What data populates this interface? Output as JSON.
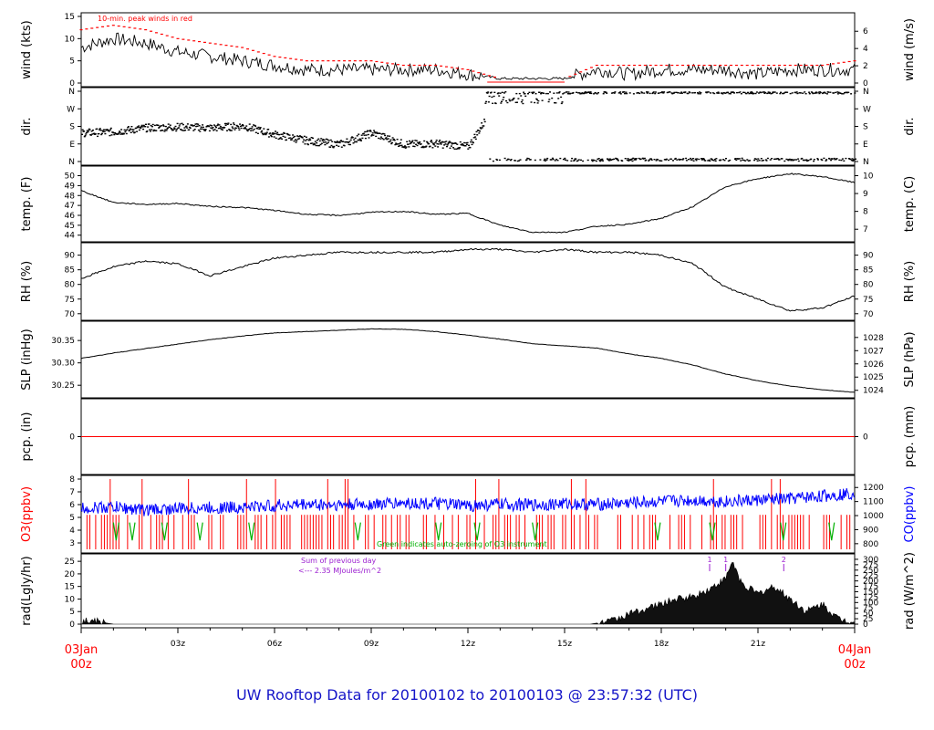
{
  "title": "UW Rooftop Data for 20100102  to  20100103 @ 23:57:32  (UTC)",
  "time_axis": {
    "start_label": [
      "03Jan",
      "00z"
    ],
    "end_label": [
      "04Jan",
      "00z"
    ],
    "ticks": [
      "03z",
      "06z",
      "09z",
      "12z",
      "15z",
      "18z",
      "21z"
    ]
  },
  "annotations": {
    "peak_winds": "10-min. peak winds in red",
    "sum_line1": "Sum of previous day",
    "sum_line2": "<--- 2.35 MJoules/m^2",
    "green_note": "Green indicates auto-zeroing of O3 instrument",
    "rad_marks": [
      "1",
      "1",
      "2"
    ]
  },
  "colors": {
    "axis": "#000000",
    "peak": "#ff0000",
    "co": "#0000ff",
    "green": "#00b000",
    "o3_label": "#ff0000",
    "co_label": "#0000ff",
    "title": "#1515c8",
    "time_label": "#ff0000"
  },
  "chart_data": [
    {
      "panel": "wind",
      "type": "line",
      "ylabel_left": "wind (kts)",
      "ylabel_right": "wind (m/s)",
      "yticks_left": [
        "0",
        "5",
        "10",
        "15"
      ],
      "yticks_right": [
        "0",
        "2",
        "4",
        "6"
      ],
      "ylim": [
        0,
        15
      ],
      "x": [
        0,
        1,
        2,
        3,
        4,
        5,
        6,
        7,
        8,
        9,
        10,
        11,
        12,
        13,
        14,
        15,
        16,
        17,
        18,
        19,
        20,
        21,
        22,
        23,
        24
      ],
      "y": [
        8,
        10,
        9,
        7,
        6,
        5,
        4,
        3,
        3,
        3,
        3,
        3,
        2,
        1,
        1,
        1,
        3,
        2,
        3,
        3,
        3,
        2,
        3,
        3,
        3
      ],
      "peak": [
        12,
        13,
        12,
        10,
        9,
        8,
        6,
        5,
        5,
        5,
        4,
        4,
        3,
        1,
        1,
        1,
        4,
        4,
        4,
        4,
        4,
        4,
        4,
        4,
        5
      ]
    },
    {
      "panel": "dir",
      "type": "scatter",
      "ylabel_left": "dir.",
      "ylabel_right": "dir.",
      "yticks_left": [
        "N",
        "E",
        "S",
        "W",
        "N"
      ],
      "yticks_right": [
        "N",
        "E",
        "S",
        "W",
        "N"
      ],
      "ylim": [
        0,
        360
      ],
      "x": [
        0,
        1,
        2,
        3,
        4,
        5,
        6,
        7,
        8,
        9,
        10,
        11,
        12,
        13,
        14,
        15,
        16,
        17,
        18,
        19,
        20,
        21,
        22,
        23,
        24
      ],
      "y": [
        150,
        155,
        175,
        180,
        175,
        185,
        140,
        110,
        90,
        150,
        90,
        95,
        80,
        340,
        340,
        20,
        5,
        10,
        355,
        350,
        20,
        60,
        80,
        355,
        350
      ]
    },
    {
      "panel": "temp",
      "type": "line",
      "ylabel_left": "temp. (F)",
      "ylabel_right": "temp. (C)",
      "yticks_left": [
        "44",
        "45",
        "46",
        "47",
        "48",
        "49",
        "50"
      ],
      "yticks_right": [
        "7",
        "8",
        "9",
        "10"
      ],
      "ylim": [
        43.7,
        50.6
      ],
      "x": [
        0,
        1,
        2,
        3,
        4,
        5,
        6,
        7,
        8,
        9,
        10,
        11,
        12,
        13,
        14,
        15,
        16,
        17,
        18,
        19,
        20,
        21,
        22,
        23,
        24
      ],
      "y": [
        48.5,
        47.3,
        47.1,
        47.2,
        46.9,
        46.8,
        46.5,
        46.1,
        46.0,
        46.3,
        46.4,
        46.1,
        46.2,
        45.0,
        44.3,
        44.3,
        44.9,
        45.1,
        45.7,
        46.9,
        48.9,
        49.7,
        50.2,
        49.9,
        49.3
      ]
    },
    {
      "panel": "rh",
      "type": "line",
      "ylabel_left": "RH (%)",
      "ylabel_right": "RH (%)",
      "yticks_left": [
        "70",
        "75",
        "80",
        "85",
        "90"
      ],
      "yticks_right": [
        "70",
        "75",
        "80",
        "85",
        "90"
      ],
      "ylim": [
        69,
        93
      ],
      "x": [
        0,
        1,
        2,
        3,
        4,
        5,
        6,
        7,
        8,
        9,
        10,
        11,
        12,
        13,
        14,
        15,
        16,
        17,
        18,
        19,
        20,
        21,
        22,
        23,
        24
      ],
      "y": [
        82,
        86,
        88,
        87,
        83,
        86,
        89,
        90,
        91,
        91,
        91,
        91,
        92,
        92,
        91,
        92,
        91,
        91,
        90,
        87,
        79,
        75,
        71,
        72,
        76
      ]
    },
    {
      "panel": "slp",
      "type": "line",
      "ylabel_left": "SLP (inHg)",
      "ylabel_right": "SLP (hPa)",
      "yticks_left": [
        "30.25",
        "30.30",
        "30.35"
      ],
      "yticks_right": [
        "1024",
        "1025",
        "1026",
        "1027",
        "1028"
      ],
      "ylim": [
        30.23,
        30.385
      ],
      "x": [
        0,
        1,
        2,
        3,
        4,
        5,
        6,
        7,
        8,
        9,
        10,
        11,
        12,
        13,
        14,
        15,
        16,
        17,
        18,
        19,
        20,
        21,
        22,
        23,
        24
      ],
      "y": [
        30.31,
        30.322,
        30.332,
        30.342,
        30.352,
        30.36,
        30.367,
        30.37,
        30.373,
        30.376,
        30.375,
        30.37,
        30.362,
        30.353,
        30.343,
        30.338,
        30.333,
        30.32,
        30.31,
        30.295,
        30.275,
        30.26,
        30.248,
        30.24,
        30.234
      ]
    },
    {
      "panel": "pcp",
      "type": "line",
      "ylabel_left": "pcp. (in)",
      "ylabel_right": "pcp. (mm)",
      "yticks_left": [
        "0"
      ],
      "yticks_right": [
        "0"
      ],
      "ylim": [
        -1,
        1
      ],
      "x": [
        0,
        24
      ],
      "y": [
        0,
        0
      ]
    },
    {
      "panel": "gas",
      "type": "line",
      "ylabel_left": "O3(ppbv)",
      "ylabel_right": "CO(ppbv)",
      "yticks_left": [
        "3",
        "4",
        "5",
        "6",
        "7",
        "8"
      ],
      "yticks_right": [
        "800",
        "900",
        "1000",
        "1100",
        "1200"
      ],
      "ylim": [
        2.5,
        8
      ],
      "co_ylim": [
        760,
        1260
      ],
      "x": [
        0,
        1,
        2,
        3,
        4,
        5,
        6,
        7,
        8,
        9,
        10,
        11,
        12,
        13,
        14,
        15,
        16,
        17,
        18,
        19,
        20,
        21,
        22,
        23,
        24
      ],
      "co": [
        1050,
        1060,
        1040,
        1050,
        1055,
        1060,
        1070,
        1080,
        1075,
        1080,
        1090,
        1085,
        1070,
        1080,
        1075,
        1085,
        1080,
        1090,
        1100,
        1110,
        1100,
        1110,
        1120,
        1140,
        1160
      ],
      "o3_top": 5.2,
      "o3_base": 2.5
    },
    {
      "panel": "rad",
      "type": "area",
      "ylabel_left": "rad(Lgly/hr)",
      "ylabel_right": "rad (W/m^2)",
      "yticks_left": [
        "0",
        "5",
        "10",
        "15",
        "20",
        "25"
      ],
      "yticks_right": [
        "0",
        "25",
        "50",
        "75",
        "100",
        "125",
        "150",
        "175",
        "200",
        "225",
        "250",
        "275",
        "300"
      ],
      "ylim": [
        0,
        26.5
      ],
      "x": [
        0,
        0.5,
        1,
        15.8,
        16.5,
        17,
        17.5,
        18,
        18.5,
        19,
        19.5,
        20,
        20.2,
        20.5,
        21,
        21.5,
        22,
        22.5,
        23,
        23.5,
        24
      ],
      "y": [
        1.5,
        1,
        0,
        0,
        1.5,
        4,
        6,
        8,
        10,
        11,
        14,
        18,
        25,
        16,
        12,
        15,
        10,
        5,
        8,
        2,
        1
      ]
    }
  ]
}
